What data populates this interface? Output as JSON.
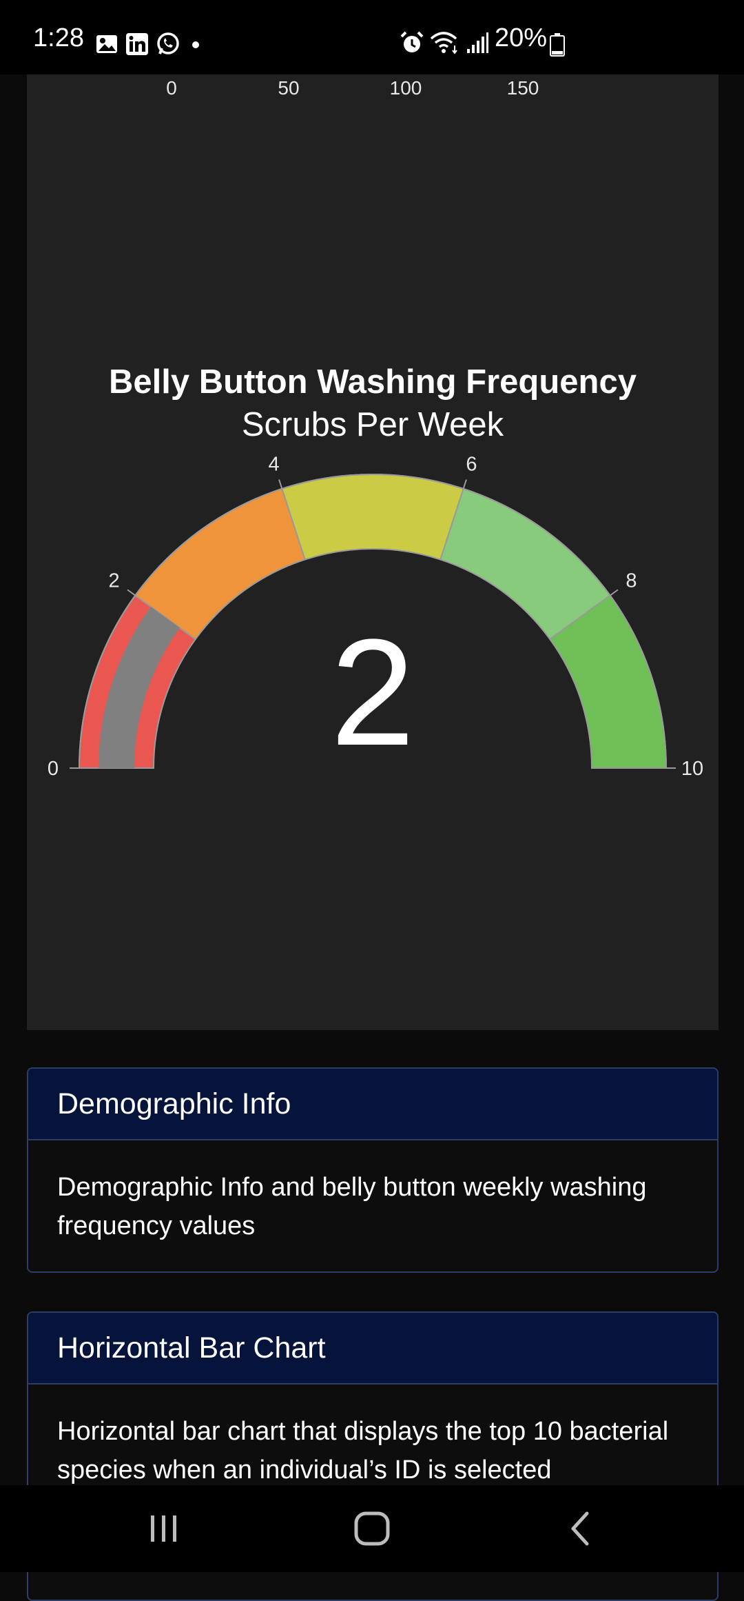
{
  "status_bar": {
    "time": "1:28",
    "battery": "20%",
    "left_icons": [
      "image-icon",
      "linkedin-icon",
      "whatsapp-icon",
      "dot-icon"
    ],
    "right_icons": [
      "alarm-icon",
      "wifi-icon",
      "signal-icon",
      "battery-icon"
    ]
  },
  "top_axis": {
    "ticks": [
      "0",
      "50",
      "100",
      "150"
    ]
  },
  "gauge": {
    "title": "Belly Button Washing Frequency",
    "subtitle": "Scrubs Per Week"
  },
  "chart_data": {
    "type": "gauge",
    "title": "Belly Button Washing Frequency",
    "subtitle": "Scrubs Per Week",
    "value": 2,
    "range": [
      0,
      10
    ],
    "tick_labels": [
      "0",
      "2",
      "4",
      "6",
      "8",
      "10"
    ],
    "bands": [
      {
        "from": 0,
        "to": 2,
        "color": "#ea5750"
      },
      {
        "from": 2,
        "to": 4,
        "color": "#ef943b"
      },
      {
        "from": 4,
        "to": 6,
        "color": "#cbcb46"
      },
      {
        "from": 6,
        "to": 8,
        "color": "#88cb7c"
      },
      {
        "from": 8,
        "to": 10,
        "color": "#6ebf55"
      }
    ],
    "bar_color": "#808080"
  },
  "cards": {
    "demographic": {
      "title": "Demographic Info",
      "body": "Demographic Info and belly button weekly washing frequency values"
    },
    "bar_chart": {
      "title": "Horizontal Bar Chart",
      "body": "Horizontal bar chart that displays the top 10 bacterial species when an individual’s ID is selected"
    }
  },
  "nav": {
    "icons": [
      "recent-apps-icon",
      "home-icon",
      "back-icon"
    ]
  },
  "colors": {
    "panel": "#212121",
    "card_header": "#06133a",
    "card_border": "#2c3e66"
  }
}
